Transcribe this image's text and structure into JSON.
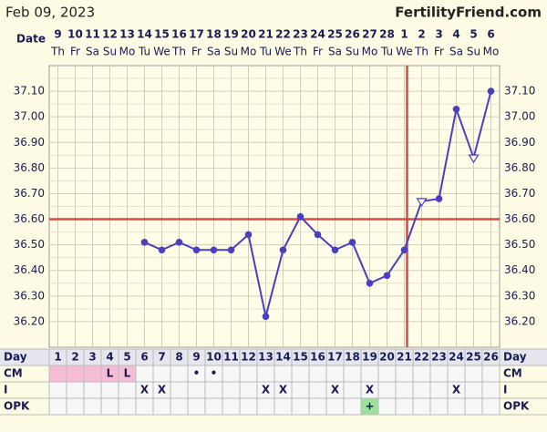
{
  "header": {
    "date": "Feb 09, 2023",
    "site": "FertilityFriend.com"
  },
  "chart_data": {
    "type": "line",
    "x_label": "Date",
    "categories": [
      9,
      10,
      11,
      12,
      13,
      14,
      15,
      16,
      17,
      18,
      19,
      20,
      21,
      22,
      23,
      24,
      25,
      26,
      27,
      28,
      1,
      2,
      3,
      4,
      5,
      6
    ],
    "weekdays": [
      "Th",
      "Fr",
      "Sa",
      "Su",
      "Mo",
      "Tu",
      "We",
      "Th",
      "Fr",
      "Sa",
      "Su",
      "Mo",
      "Tu",
      "We",
      "Th",
      "Fr",
      "Sa",
      "Su",
      "Mo",
      "Tu",
      "We",
      "Th",
      "Fr",
      "Sa",
      "Su",
      "Mo"
    ],
    "series": [
      {
        "color": "#4b3fbf",
        "values": [
          null,
          null,
          null,
          null,
          null,
          36.51,
          36.48,
          36.51,
          36.48,
          36.48,
          36.48,
          36.54,
          36.22,
          36.48,
          36.61,
          36.54,
          36.48,
          36.51,
          36.35,
          36.38,
          36.48,
          36.67,
          36.68,
          37.03,
          36.84,
          37.1
        ],
        "markers": [
          null,
          null,
          null,
          null,
          null,
          "circle",
          "circle",
          "circle",
          "circle",
          "circle",
          "circle",
          "circle",
          "circle",
          "circle",
          "circle",
          "circle",
          "circle",
          "circle",
          "circle",
          "circle",
          "circle",
          "triangle",
          "circle",
          "circle",
          "triangle",
          "circle"
        ]
      }
    ],
    "ylim": [
      36.1,
      37.2
    ],
    "yticks": [
      {
        "value": 36.2,
        "label": "36.20"
      },
      {
        "value": 36.3,
        "label": "36.30"
      },
      {
        "value": 36.4,
        "label": "36.40"
      },
      {
        "value": 36.5,
        "label": "36.50"
      },
      {
        "value": 36.6,
        "label": "36.60"
      },
      {
        "value": 36.7,
        "label": "36.70"
      },
      {
        "value": 36.8,
        "label": "36.80"
      },
      {
        "value": 36.9,
        "label": "36.90"
      },
      {
        "value": 37.0,
        "label": "37.00"
      },
      {
        "value": 37.1,
        "label": "37.10"
      }
    ],
    "grid": true,
    "coverline": 36.6,
    "coverline_color": "#d9474b",
    "ovulation_day": 21
  },
  "table": {
    "days_label": "Day",
    "days": [
      1,
      2,
      3,
      4,
      5,
      6,
      7,
      8,
      9,
      10,
      11,
      12,
      13,
      14,
      15,
      16,
      17,
      18,
      19,
      20,
      21,
      22,
      23,
      24,
      25,
      26
    ],
    "rows": [
      {
        "label": "CM",
        "values": [
          null,
          null,
          null,
          "L",
          "L",
          null,
          null,
          null,
          "•",
          "•",
          null,
          null,
          null,
          null,
          null,
          null,
          null,
          null,
          null,
          null,
          null,
          null,
          null,
          null,
          null,
          null
        ],
        "cell_colors": [
          "#f6bcd6",
          "#f6bcd6",
          "#f6bcd6",
          "#f6bcd6",
          "#f6bcd6",
          null,
          null,
          null,
          null,
          null,
          null,
          null,
          null,
          null,
          null,
          null,
          null,
          null,
          null,
          null,
          null,
          null,
          null,
          null,
          null,
          null
        ]
      },
      {
        "label": "I",
        "values": [
          null,
          null,
          null,
          null,
          null,
          "X",
          "X",
          null,
          null,
          null,
          null,
          null,
          "X",
          "X",
          null,
          null,
          "X",
          null,
          "X",
          null,
          null,
          null,
          null,
          "X",
          null,
          null
        ]
      },
      {
        "label": "OPK",
        "values": [
          null,
          null,
          null,
          null,
          null,
          null,
          null,
          null,
          null,
          null,
          null,
          null,
          null,
          null,
          null,
          null,
          null,
          null,
          "+",
          null,
          null,
          null,
          null,
          null,
          null,
          null
        ],
        "cell_colors": [
          null,
          null,
          null,
          null,
          null,
          null,
          null,
          null,
          null,
          null,
          null,
          null,
          null,
          null,
          null,
          null,
          null,
          null,
          "#9be39b",
          null,
          null,
          null,
          null,
          null,
          null,
          null
        ]
      }
    ]
  }
}
